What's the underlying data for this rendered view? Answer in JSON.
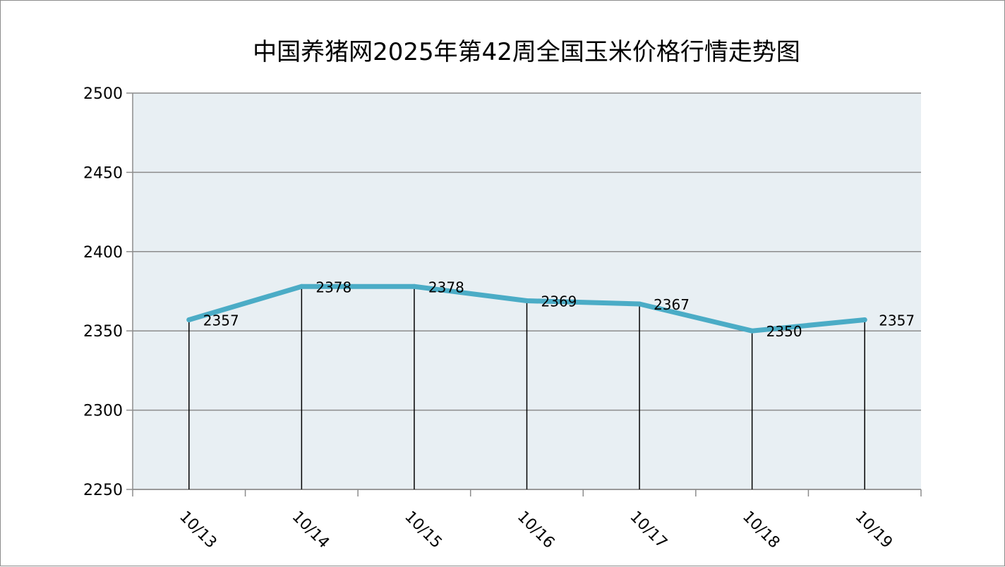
{
  "chart_data": {
    "type": "line",
    "title": "中国养猪网2025年第42周全国玉米价格行情走势图",
    "categories": [
      "10/13",
      "10/14",
      "10/15",
      "10/16",
      "10/17",
      "10/18",
      "10/19"
    ],
    "series": [
      {
        "values": [
          2357,
          2378,
          2378,
          2369,
          2367,
          2350,
          2357
        ]
      }
    ],
    "data_labels": [
      "2357",
      "2378",
      "2378",
      "2369",
      "2367",
      "2350",
      "2357"
    ],
    "y_ticks": [
      "2500",
      "2450",
      "2400",
      "2350",
      "2300",
      "2250"
    ],
    "y_tick_values": [
      2500,
      2450,
      2400,
      2350,
      2300,
      2250
    ],
    "ylim": [
      2250,
      2500
    ],
    "xlabel": "",
    "ylabel": "",
    "grid": true,
    "drop_lines": true,
    "legend": "none",
    "colors": {
      "line": "#4bacc6",
      "plot_bg": "#e8eff3",
      "grid": "#8c8c8c",
      "drop_line": "#000000"
    }
  }
}
